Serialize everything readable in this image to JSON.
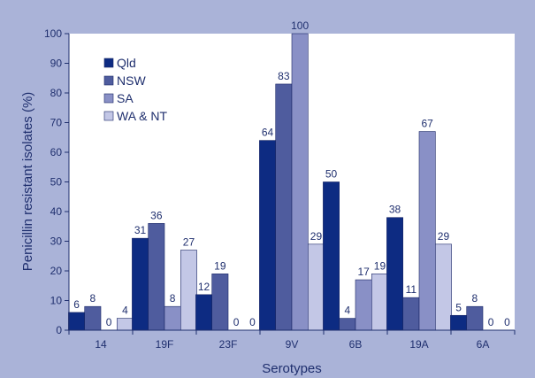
{
  "chart_data": {
    "type": "bar",
    "title": "",
    "xlabel": "Serotypes",
    "ylabel": "Penicillin resistant isolates (%)",
    "ylim": [
      0,
      100
    ],
    "yticks": [
      0,
      10,
      20,
      30,
      40,
      50,
      60,
      70,
      80,
      90,
      100
    ],
    "grid": false,
    "legend_position": "top-left",
    "categories": [
      "14",
      "19F",
      "23F",
      "9V",
      "6B",
      "19A",
      "6A"
    ],
    "series": [
      {
        "name": "Qld",
        "color": "#0d2b82",
        "values": [
          6,
          31,
          12,
          64,
          50,
          38,
          5
        ]
      },
      {
        "name": "NSW",
        "color": "#4f5c9e",
        "values": [
          8,
          36,
          19,
          83,
          4,
          11,
          8
        ]
      },
      {
        "name": "SA",
        "color": "#8990c6",
        "values": [
          0,
          8,
          0,
          100,
          17,
          67,
          0
        ]
      },
      {
        "name": "WA & NT",
        "color": "#c3c7e6",
        "values": [
          4,
          27,
          0,
          29,
          19,
          29,
          0
        ]
      }
    ]
  }
}
